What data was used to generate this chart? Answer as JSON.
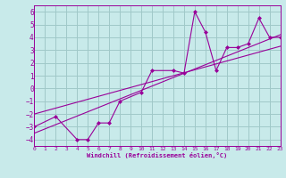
{
  "background_color": "#c8eaea",
  "grid_color": "#a0c8c8",
  "line_color": "#990099",
  "marker_color": "#990099",
  "xlim": [
    0,
    23
  ],
  "ylim": [
    -4.5,
    6.5
  ],
  "yticks": [
    -4,
    -3,
    -2,
    -1,
    0,
    1,
    2,
    3,
    4,
    5,
    6
  ],
  "xticks": [
    0,
    1,
    2,
    3,
    4,
    5,
    6,
    7,
    8,
    9,
    10,
    11,
    12,
    13,
    14,
    15,
    16,
    17,
    18,
    19,
    20,
    21,
    22,
    23
  ],
  "xlabel": "Windchill (Refroidissement éolien,°C)",
  "series1_x": [
    0,
    2,
    4,
    5,
    6,
    7,
    8,
    10,
    11,
    13,
    14,
    15,
    16,
    17,
    18,
    19,
    20,
    21,
    22,
    23
  ],
  "series1_y": [
    -3.0,
    -2.2,
    -4.0,
    -4.0,
    -2.7,
    -2.7,
    -1.0,
    -0.3,
    1.4,
    1.4,
    1.2,
    6.0,
    4.4,
    1.4,
    3.2,
    3.2,
    3.5,
    5.5,
    4.0,
    4.0
  ],
  "series2_x": [
    0,
    23
  ],
  "series2_y": [
    -3.5,
    4.2
  ],
  "series3_x": [
    0,
    23
  ],
  "series3_y": [
    -2.0,
    3.3
  ]
}
